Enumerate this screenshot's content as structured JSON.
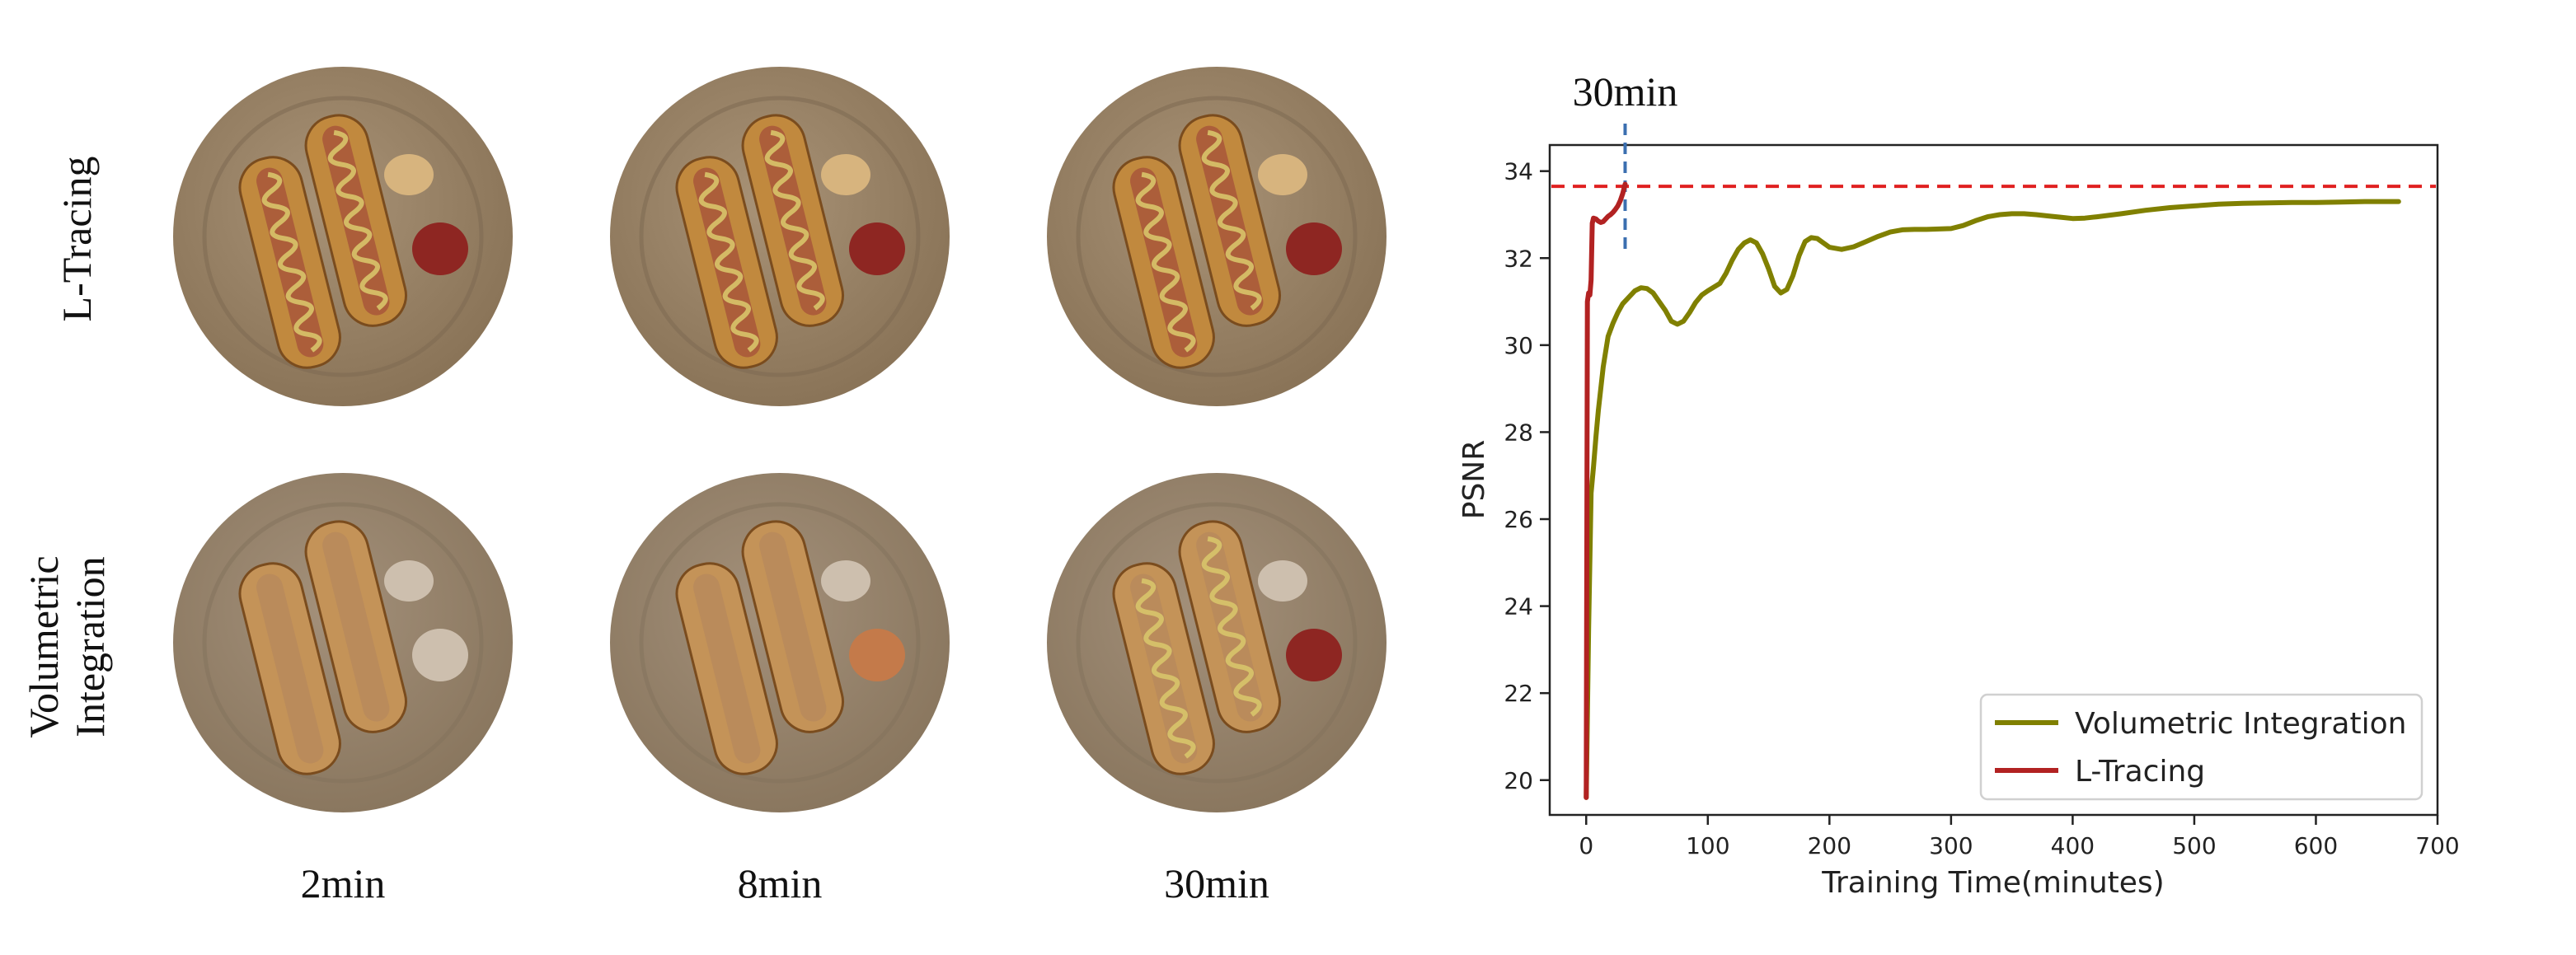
{
  "figure": {
    "row_labels": [
      "L-Tracing",
      "Volumetric\nIntegration"
    ],
    "column_labels": [
      "2min",
      "8min",
      "30min"
    ],
    "images": [
      {
        "row": "L-Tracing",
        "time": "2min",
        "sauces": [
          "mustard",
          "ketchup"
        ],
        "mustard_on_hotdogs": true
      },
      {
        "row": "L-Tracing",
        "time": "8min",
        "sauces": [
          "mustard",
          "ketchup"
        ],
        "mustard_on_hotdogs": true
      },
      {
        "row": "L-Tracing",
        "time": "30min",
        "sauces": [
          "mustard",
          "ketchup"
        ],
        "mustard_on_hotdogs": true
      },
      {
        "row": "Volumetric Integration",
        "time": "2min",
        "sauces": [
          "pale",
          "pale"
        ],
        "mustard_on_hotdogs": false
      },
      {
        "row": "Volumetric Integration",
        "time": "8min",
        "sauces": [
          "pale",
          "orange"
        ],
        "mustard_on_hotdogs": false
      },
      {
        "row": "Volumetric Integration",
        "time": "30min",
        "sauces": [
          "pale",
          "ketchup"
        ],
        "mustard_on_hotdogs": true
      }
    ]
  },
  "chart_data": {
    "type": "line",
    "title": "",
    "xlabel": "Training Time(minutes)",
    "ylabel": "PSNR",
    "xlim": [
      -30,
      700
    ],
    "ylim": [
      19.2,
      34.6
    ],
    "xticks": [
      0,
      100,
      200,
      300,
      400,
      500,
      600,
      700
    ],
    "yticks": [
      20,
      22,
      24,
      26,
      28,
      30,
      32,
      34
    ],
    "annotation": {
      "text": "30min",
      "x": 32
    },
    "hline_y": 33.65,
    "hline_color": "#e02020",
    "vline_color": "#3b6fb0",
    "legend_position": "lower right",
    "series": [
      {
        "name": "Volumetric Integration",
        "color": "#808000",
        "x": [
          0,
          2,
          4,
          6,
          8,
          10,
          14,
          18,
          22,
          26,
          30,
          35,
          40,
          45,
          50,
          55,
          60,
          65,
          70,
          75,
          80,
          85,
          90,
          95,
          100,
          110,
          115,
          120,
          125,
          130,
          135,
          140,
          145,
          150,
          155,
          160,
          165,
          170,
          175,
          180,
          185,
          190,
          195,
          200,
          210,
          220,
          230,
          240,
          250,
          260,
          270,
          280,
          290,
          300,
          310,
          320,
          330,
          340,
          350,
          360,
          370,
          380,
          390,
          400,
          410,
          420,
          440,
          460,
          480,
          500,
          520,
          540,
          560,
          580,
          600,
          620,
          640,
          668
        ],
        "values": [
          19.6,
          23.5,
          26.6,
          27.2,
          27.9,
          28.5,
          29.5,
          30.2,
          30.5,
          30.75,
          30.95,
          31.1,
          31.25,
          31.32,
          31.3,
          31.2,
          31.0,
          30.8,
          30.55,
          30.48,
          30.55,
          30.75,
          30.98,
          31.15,
          31.25,
          31.42,
          31.65,
          31.95,
          32.2,
          32.35,
          32.42,
          32.35,
          32.1,
          31.75,
          31.35,
          31.2,
          31.28,
          31.6,
          32.05,
          32.38,
          32.47,
          32.45,
          32.35,
          32.25,
          32.2,
          32.26,
          32.38,
          32.5,
          32.6,
          32.65,
          32.66,
          32.66,
          32.67,
          32.68,
          32.75,
          32.86,
          32.95,
          33.0,
          33.02,
          33.02,
          33.0,
          32.97,
          32.94,
          32.91,
          32.92,
          32.95,
          33.02,
          33.1,
          33.16,
          33.2,
          33.24,
          33.26,
          33.27,
          33.28,
          33.28,
          33.29,
          33.3,
          33.3
        ]
      },
      {
        "name": "L-Tracing",
        "color": "#b22222",
        "x": [
          0,
          1,
          2,
          3,
          4,
          5,
          6,
          8,
          10,
          12,
          14,
          16,
          18,
          20,
          22,
          24,
          26,
          28,
          30,
          32
        ],
        "values": [
          19.6,
          31.0,
          31.2,
          31.15,
          31.5,
          32.8,
          32.92,
          32.9,
          32.85,
          32.82,
          32.84,
          32.9,
          32.96,
          33.0,
          33.05,
          33.12,
          33.2,
          33.32,
          33.48,
          33.7
        ]
      }
    ]
  }
}
